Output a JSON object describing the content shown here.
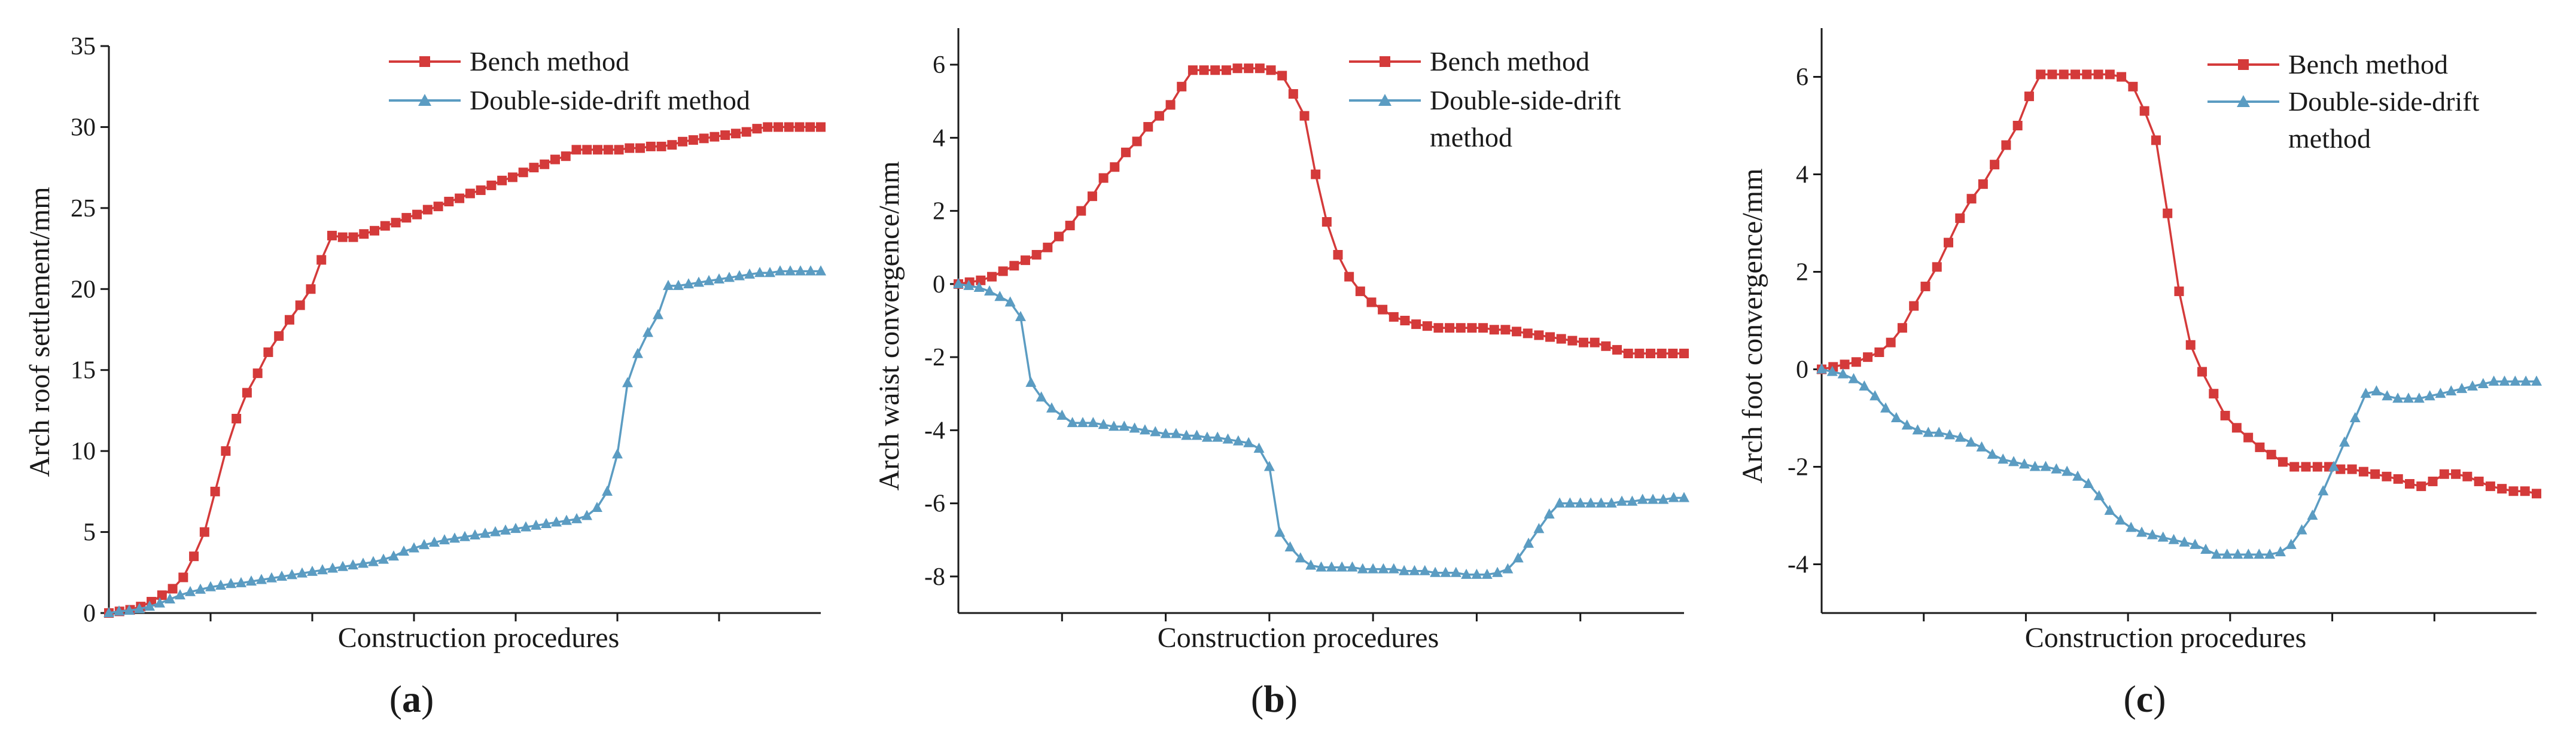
{
  "colors": {
    "bench": "#d43a3a",
    "double_side_drift": "#5b9cc2",
    "axis": "#1a1a1a"
  },
  "chart_data": [
    {
      "type": "line",
      "panel_label": "(a)",
      "panel_letter": "a",
      "xlabel": "Construction procedures",
      "ylabel": "Arch roof settlement/mm",
      "ylim": [
        0,
        35
      ],
      "yticks": [
        0,
        5,
        10,
        15,
        20,
        25,
        30,
        35
      ],
      "x_minor_ticks": 6,
      "legend_position": "top-right",
      "series": [
        {
          "name": "Bench method",
          "marker": "square",
          "color_key": "bench",
          "values": [
            0,
            0.1,
            0.2,
            0.4,
            0.7,
            1.1,
            1.5,
            2.2,
            3.5,
            5.0,
            7.5,
            10.0,
            12.0,
            13.6,
            14.8,
            16.1,
            17.1,
            18.1,
            19.0,
            20.0,
            21.8,
            23.3,
            23.2,
            23.2,
            23.4,
            23.6,
            23.9,
            24.1,
            24.4,
            24.6,
            24.9,
            25.1,
            25.4,
            25.6,
            25.9,
            26.1,
            26.4,
            26.7,
            26.9,
            27.2,
            27.5,
            27.7,
            28.0,
            28.2,
            28.6,
            28.6,
            28.6,
            28.6,
            28.6,
            28.7,
            28.7,
            28.8,
            28.8,
            28.9,
            29.1,
            29.2,
            29.3,
            29.4,
            29.5,
            29.6,
            29.7,
            29.9,
            30.0,
            30.0,
            30.0,
            30.0,
            30.0,
            30.0
          ]
        },
        {
          "name": "Double-side-drift method",
          "marker": "triangle",
          "color_key": "double_side_drift",
          "values": [
            0,
            0.1,
            0.15,
            0.25,
            0.4,
            0.6,
            0.85,
            1.1,
            1.3,
            1.45,
            1.6,
            1.7,
            1.8,
            1.85,
            1.95,
            2.05,
            2.15,
            2.25,
            2.35,
            2.45,
            2.55,
            2.65,
            2.75,
            2.85,
            2.95,
            3.05,
            3.15,
            3.3,
            3.5,
            3.8,
            4.0,
            4.2,
            4.35,
            4.5,
            4.6,
            4.7,
            4.8,
            4.9,
            5.0,
            5.1,
            5.2,
            5.3,
            5.4,
            5.5,
            5.6,
            5.7,
            5.8,
            6.0,
            6.5,
            7.5,
            9.8,
            14.2,
            16.0,
            17.3,
            18.4,
            20.2,
            20.2,
            20.3,
            20.4,
            20.5,
            20.6,
            20.7,
            20.8,
            20.9,
            21.0,
            21.0,
            21.1,
            21.1,
            21.1,
            21.1,
            21.1
          ]
        }
      ]
    },
    {
      "type": "line",
      "panel_label": "(b)",
      "panel_letter": "b",
      "xlabel": "Construction procedures",
      "ylabel": "Arch waist convergence/mm",
      "ylim": [
        -9,
        7
      ],
      "yticks": [
        -8,
        -6,
        -4,
        -2,
        0,
        2,
        4,
        6
      ],
      "x_minor_ticks": 6,
      "legend_position": "top-right",
      "series": [
        {
          "name": "Bench method",
          "marker": "square",
          "color_key": "bench",
          "values": [
            0,
            0.05,
            0.1,
            0.2,
            0.35,
            0.5,
            0.65,
            0.8,
            1.0,
            1.3,
            1.6,
            2.0,
            2.4,
            2.9,
            3.2,
            3.6,
            3.9,
            4.3,
            4.6,
            4.9,
            5.4,
            5.85,
            5.85,
            5.85,
            5.85,
            5.9,
            5.9,
            5.9,
            5.85,
            5.7,
            5.2,
            4.6,
            3.0,
            1.7,
            0.8,
            0.2,
            -0.2,
            -0.5,
            -0.7,
            -0.9,
            -1.0,
            -1.1,
            -1.15,
            -1.2,
            -1.2,
            -1.2,
            -1.2,
            -1.2,
            -1.25,
            -1.25,
            -1.3,
            -1.35,
            -1.4,
            -1.45,
            -1.5,
            -1.55,
            -1.6,
            -1.6,
            -1.7,
            -1.8,
            -1.9,
            -1.9,
            -1.9,
            -1.9,
            -1.9,
            -1.9
          ]
        },
        {
          "name": "Double-side-drift method",
          "marker": "triangle",
          "color_key": "double_side_drift",
          "values": [
            0,
            -0.05,
            -0.1,
            -0.2,
            -0.35,
            -0.5,
            -0.9,
            -2.7,
            -3.1,
            -3.4,
            -3.6,
            -3.8,
            -3.8,
            -3.8,
            -3.85,
            -3.9,
            -3.9,
            -3.95,
            -4.0,
            -4.05,
            -4.1,
            -4.1,
            -4.15,
            -4.15,
            -4.2,
            -4.2,
            -4.25,
            -4.3,
            -4.35,
            -4.5,
            -5.0,
            -6.8,
            -7.2,
            -7.5,
            -7.7,
            -7.75,
            -7.75,
            -7.75,
            -7.75,
            -7.8,
            -7.8,
            -7.8,
            -7.8,
            -7.85,
            -7.85,
            -7.85,
            -7.9,
            -7.9,
            -7.9,
            -7.95,
            -7.95,
            -7.95,
            -7.9,
            -7.8,
            -7.5,
            -7.1,
            -6.7,
            -6.3,
            -6.0,
            -6.0,
            -6.0,
            -6.0,
            -6.0,
            -6.0,
            -5.95,
            -5.95,
            -5.9,
            -5.9,
            -5.9,
            -5.85,
            -5.85
          ]
        }
      ]
    },
    {
      "type": "line",
      "panel_label": "(c)",
      "panel_letter": "c",
      "xlabel": "Construction procedures",
      "ylabel": "Arch foot convergence/mm",
      "ylim": [
        -5,
        7
      ],
      "yticks": [
        -4,
        -2,
        0,
        2,
        4,
        6
      ],
      "x_minor_ticks": 6,
      "legend_position": "top-right",
      "series": [
        {
          "name": "Bench method",
          "marker": "square",
          "color_key": "bench",
          "values": [
            0,
            0.05,
            0.1,
            0.15,
            0.25,
            0.35,
            0.55,
            0.85,
            1.3,
            1.7,
            2.1,
            2.6,
            3.1,
            3.5,
            3.8,
            4.2,
            4.6,
            5.0,
            5.6,
            6.05,
            6.05,
            6.05,
            6.05,
            6.05,
            6.05,
            6.05,
            6.0,
            5.8,
            5.3,
            4.7,
            3.2,
            1.6,
            0.5,
            -0.05,
            -0.5,
            -0.95,
            -1.2,
            -1.4,
            -1.6,
            -1.75,
            -1.9,
            -2.0,
            -2.0,
            -2.0,
            -2.0,
            -2.05,
            -2.05,
            -2.1,
            -2.15,
            -2.2,
            -2.25,
            -2.35,
            -2.4,
            -2.3,
            -2.15,
            -2.15,
            -2.2,
            -2.3,
            -2.4,
            -2.45,
            -2.5,
            -2.5,
            -2.55
          ]
        },
        {
          "name": "Double-side-drift method",
          "marker": "triangle",
          "color_key": "double_side_drift",
          "values": [
            0,
            -0.05,
            -0.1,
            -0.2,
            -0.35,
            -0.55,
            -0.8,
            -1.0,
            -1.15,
            -1.25,
            -1.3,
            -1.3,
            -1.35,
            -1.4,
            -1.5,
            -1.6,
            -1.75,
            -1.85,
            -1.9,
            -1.95,
            -2.0,
            -2.0,
            -2.05,
            -2.1,
            -2.2,
            -2.35,
            -2.6,
            -2.9,
            -3.1,
            -3.25,
            -3.35,
            -3.4,
            -3.45,
            -3.5,
            -3.55,
            -3.6,
            -3.7,
            -3.8,
            -3.8,
            -3.8,
            -3.8,
            -3.8,
            -3.8,
            -3.75,
            -3.6,
            -3.3,
            -3.0,
            -2.5,
            -2.0,
            -1.5,
            -1.0,
            -0.5,
            -0.45,
            -0.55,
            -0.6,
            -0.6,
            -0.6,
            -0.55,
            -0.5,
            -0.45,
            -0.4,
            -0.35,
            -0.3,
            -0.25,
            -0.25,
            -0.25,
            -0.25,
            -0.25
          ]
        }
      ]
    }
  ]
}
